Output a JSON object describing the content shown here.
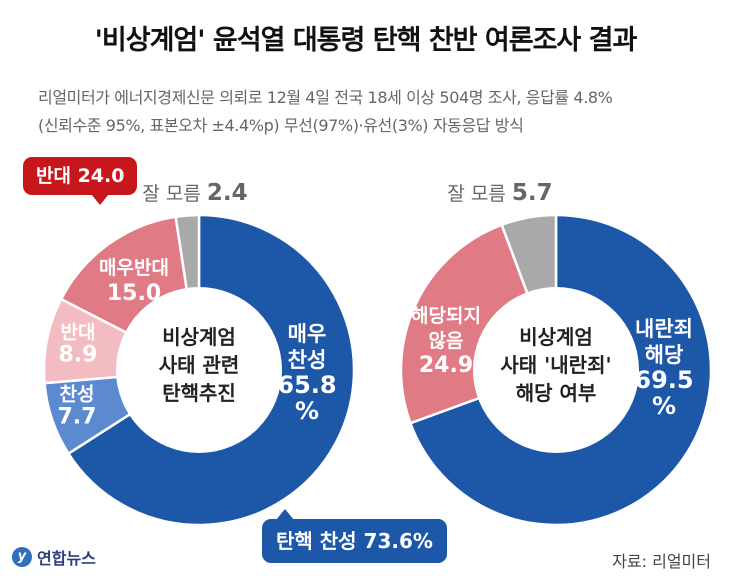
{
  "title": "'비상계엄' 윤석열 대통령 탄핵 찬반 여론조사 결과",
  "subtitle_line1": "리얼미터가 에너지경제신문 의뢰로 12월 4일 전국 18세 이상 504명 조사, 응답률 4.8%",
  "subtitle_line2": "(신뢰수준 95%, 표본오차 ±4.4%p) 무선(97%)·유선(3%) 자동응답 방식",
  "badges": {
    "oppose": "반대 24.0",
    "support": "탄핵 찬성 73.6%"
  },
  "logo_text": "연합뉴스",
  "logo_mark": "y",
  "source": "자료: 리얼미터",
  "chart_data": [
    {
      "type": "pie",
      "center_label": [
        "비상계엄",
        "사태 관련",
        "탄핵추진"
      ],
      "slices": [
        {
          "label": [
            "매우",
            "찬성"
          ],
          "value": 65.8,
          "value_label": [
            "65.8",
            "%"
          ],
          "color": "#1d57a8",
          "text_color": "#ffffff"
        },
        {
          "label": [
            "찬성"
          ],
          "value": 7.7,
          "value_label": [
            "7.7"
          ],
          "color": "#5b8ad0",
          "text_color": "#ffffff"
        },
        {
          "label": [
            "반대"
          ],
          "value": 8.9,
          "value_label": [
            "8.9"
          ],
          "color": "#f2bcc2",
          "text_color": "#ffffff"
        },
        {
          "label": [
            "매우반대"
          ],
          "value": 15.0,
          "value_label": [
            "15.0"
          ],
          "color": "#e07a84",
          "text_color": "#ffffff"
        },
        {
          "label": [
            "잘 모름"
          ],
          "value": 2.4,
          "value_label": [
            "2.4"
          ],
          "color": "#a9a9a9",
          "text_color": "#666666"
        }
      ]
    },
    {
      "type": "pie",
      "center_label": [
        "비상계엄",
        "사태 '내란죄'",
        "해당 여부"
      ],
      "slices": [
        {
          "label": [
            "내란죄",
            "해당"
          ],
          "value": 69.5,
          "value_label": [
            "69.5",
            "%"
          ],
          "color": "#1d57a8",
          "text_color": "#ffffff"
        },
        {
          "label": [
            "해당되지",
            "않음"
          ],
          "value": 24.9,
          "value_label": [
            "24.9"
          ],
          "color": "#e07a84",
          "text_color": "#ffffff"
        },
        {
          "label": [
            "잘 모름"
          ],
          "value": 5.7,
          "value_label": [
            "5.7"
          ],
          "color": "#a9a9a9",
          "text_color": "#666666"
        }
      ]
    }
  ]
}
